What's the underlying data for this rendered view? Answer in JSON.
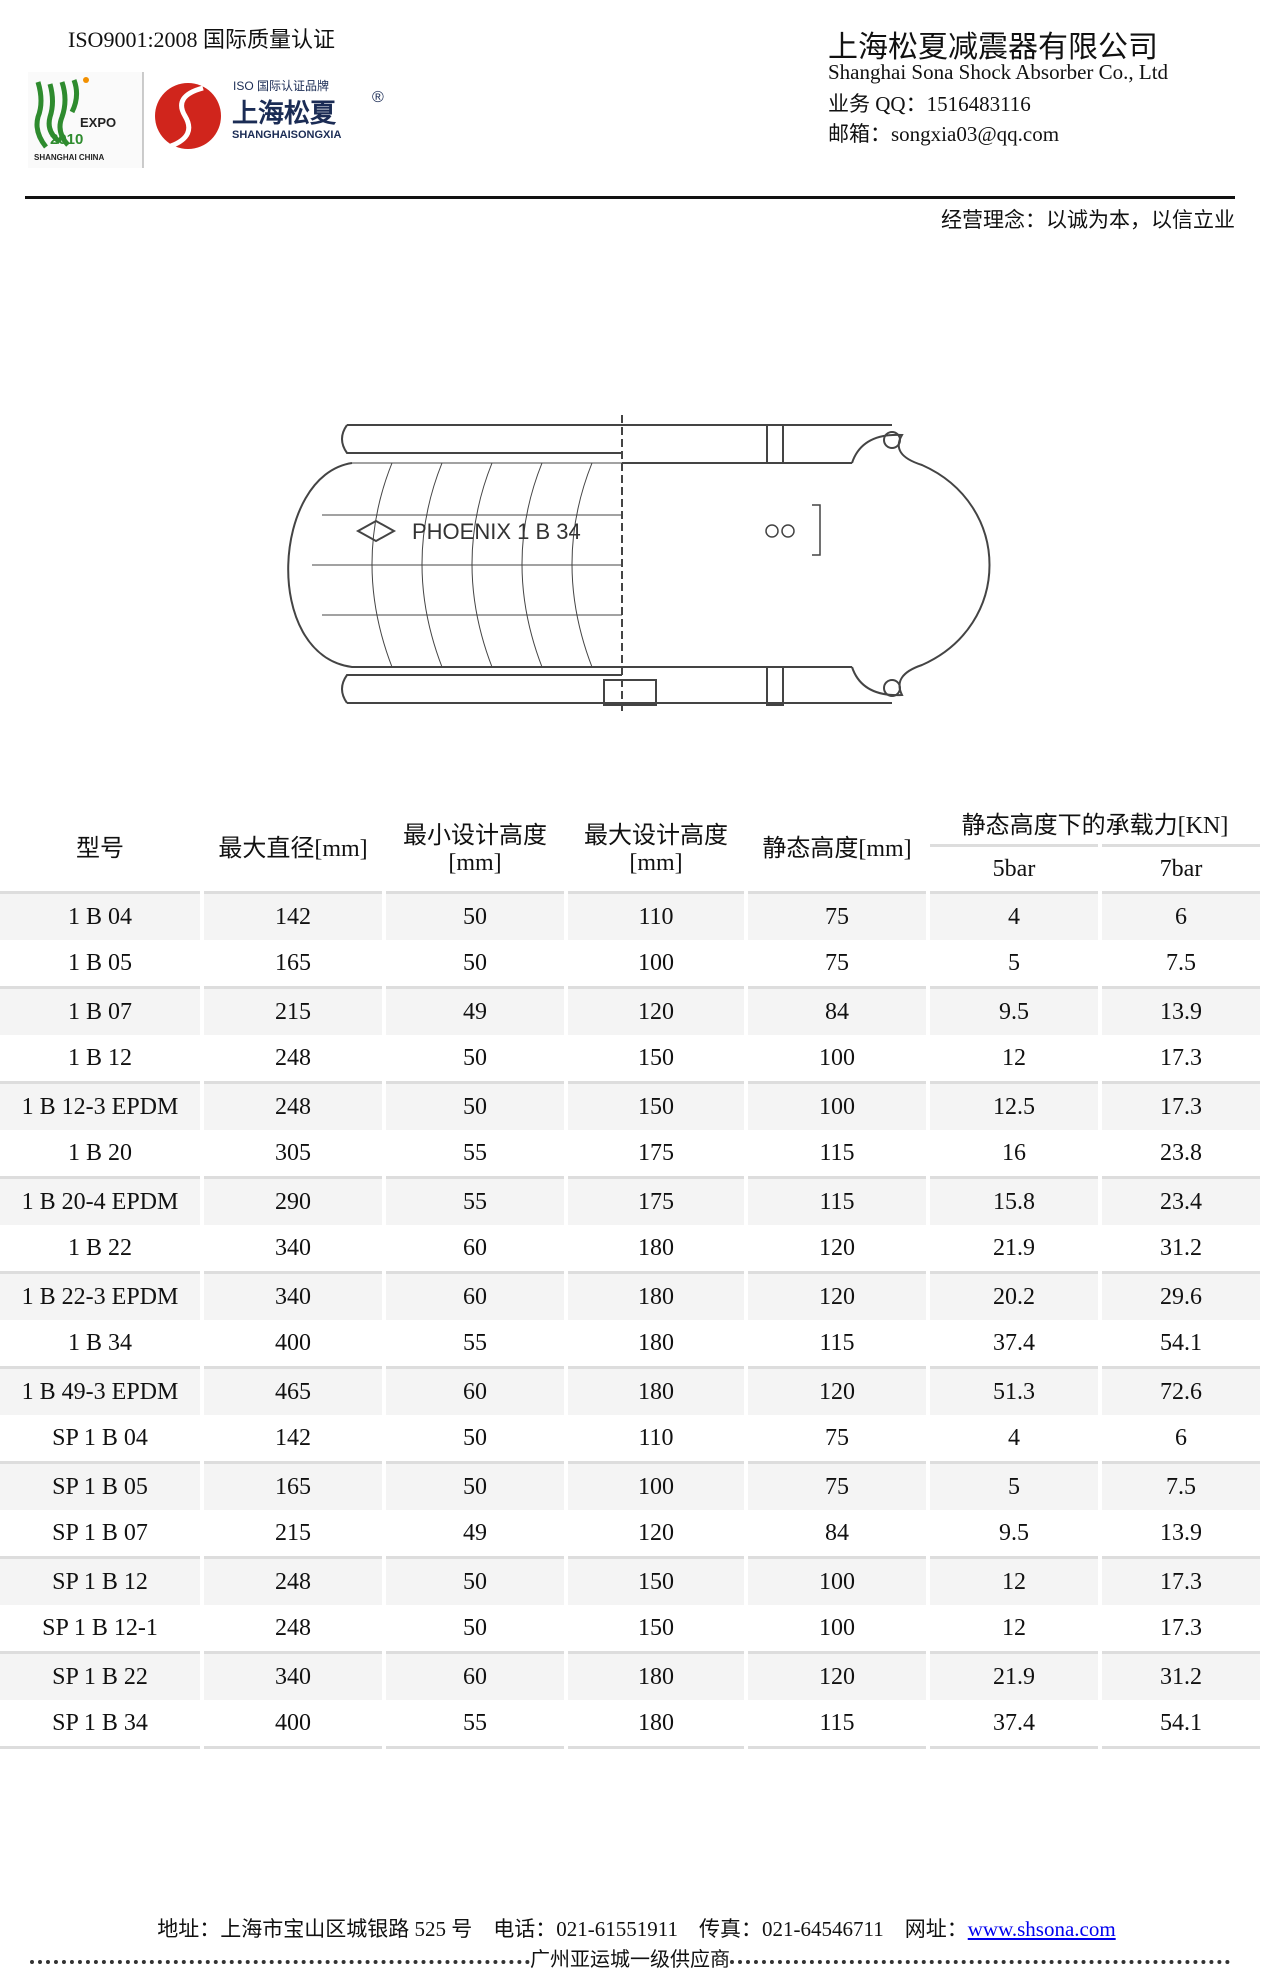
{
  "header": {
    "iso": "ISO9001:2008 国际质量认证",
    "expo_logo": "EXPO 2010 SHANGHAI CHINA",
    "brand_logo": {
      "tag": "ISO 国际认证品牌",
      "name": "上海松夏",
      "pinyin": "SHANGHAISONGXIA",
      "mark": "®"
    },
    "company": "上海松夏减震器有限公司",
    "company_en": "Shanghai Sona Shock Absorber Co., Ltd",
    "qq": "业务 QQ：1516483116",
    "email": "邮箱：songxia03@qq.com",
    "motto": "经营理念：以诚为本，以信立业",
    "brand_color": "#d0251c"
  },
  "drawing": {
    "label": "PHOENIX    1 B 34"
  },
  "table": {
    "headers": [
      "型号",
      "最大直径[mm]",
      "最小设计高度",
      "[mm]",
      "最大设计高度",
      "[mm]",
      "静态高度[mm]",
      "静态高度下的承载力[KN]",
      "5bar",
      "7bar"
    ],
    "rows": [
      [
        "1 B 04",
        "142",
        "50",
        "110",
        "75",
        "4",
        "6"
      ],
      [
        "1 B 05",
        "165",
        "50",
        "100",
        "75",
        "5",
        "7.5"
      ],
      [
        "1 B 07",
        "215",
        "49",
        "120",
        "84",
        "9.5",
        "13.9"
      ],
      [
        "1 B 12",
        "248",
        "50",
        "150",
        "100",
        "12",
        "17.3"
      ],
      [
        "1 B 12-3 EPDM",
        "248",
        "50",
        "150",
        "100",
        "12.5",
        "17.3"
      ],
      [
        "1 B 20",
        "305",
        "55",
        "175",
        "115",
        "16",
        "23.8"
      ],
      [
        "1 B 20-4 EPDM",
        "290",
        "55",
        "175",
        "115",
        "15.8",
        "23.4"
      ],
      [
        "1 B 22",
        "340",
        "60",
        "180",
        "120",
        "21.9",
        "31.2"
      ],
      [
        "1 B 22-3 EPDM",
        "340",
        "60",
        "180",
        "120",
        "20.2",
        "29.6"
      ],
      [
        "1 B 34",
        "400",
        "55",
        "180",
        "115",
        "37.4",
        "54.1"
      ],
      [
        "1 B 49-3 EPDM",
        "465",
        "60",
        "180",
        "120",
        "51.3",
        "72.6"
      ],
      [
        "SP 1 B 04",
        "142",
        "50",
        "110",
        "75",
        "4",
        "6"
      ],
      [
        "SP 1 B 05",
        "165",
        "50",
        "100",
        "75",
        "5",
        "7.5"
      ],
      [
        "SP 1 B 07",
        "215",
        "49",
        "120",
        "84",
        "9.5",
        "13.9"
      ],
      [
        "SP 1 B 12",
        "248",
        "50",
        "150",
        "100",
        "12",
        "17.3"
      ],
      [
        "SP 1 B 12-1",
        "248",
        "50",
        "150",
        "100",
        "12",
        "17.3"
      ],
      [
        "SP 1 B 22",
        "340",
        "60",
        "180",
        "120",
        "21.9",
        "31.2"
      ],
      [
        "SP 1 B 34",
        "400",
        "55",
        "180",
        "115",
        "37.4",
        "54.1"
      ]
    ]
  },
  "footer": {
    "address": "地址：上海市宝山区城银路 525 号　电话：021-61551911　传真：021-64546711　网址：",
    "website": "www.shsona.com",
    "supplier": "广州亚运城一级供应商"
  }
}
